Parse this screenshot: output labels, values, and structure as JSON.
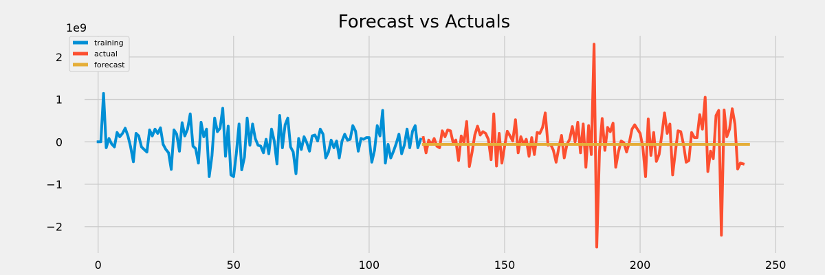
{
  "chart_data": {
    "type": "line",
    "title": "Forecast vs Actuals",
    "offset_label": "1e9",
    "xlabel": "",
    "ylabel": "",
    "xlim": [
      -5,
      253
    ],
    "ylim": [
      -2.62,
      2.5
    ],
    "xticks": [
      0,
      50,
      100,
      150,
      200,
      250
    ],
    "yticks": [
      -2,
      -1,
      0,
      1,
      2
    ],
    "xtick_labels": [
      "0",
      "50",
      "100",
      "150",
      "200",
      "250"
    ],
    "ytick_labels": [
      "−2",
      "−1",
      "0",
      "1",
      "2"
    ],
    "grid": true,
    "legend_position": "top-left",
    "series": [
      {
        "name": "training",
        "color": "#008fd5",
        "x_start": 0,
        "values": [
          0.0,
          0.0,
          1.14,
          -0.14,
          0.08,
          -0.05,
          -0.12,
          0.22,
          0.12,
          0.2,
          0.32,
          0.14,
          -0.12,
          -0.47,
          0.2,
          0.14,
          -0.12,
          -0.18,
          -0.24,
          0.28,
          0.14,
          0.3,
          0.2,
          0.33,
          -0.06,
          -0.18,
          -0.26,
          -0.65,
          0.28,
          0.18,
          -0.22,
          0.45,
          0.14,
          0.3,
          0.66,
          -0.1,
          -0.16,
          -0.5,
          0.46,
          0.12,
          0.3,
          -0.82,
          -0.33,
          0.56,
          0.24,
          0.32,
          0.79,
          -0.34,
          0.37,
          -0.78,
          -0.82,
          -0.28,
          0.42,
          -0.66,
          -0.36,
          0.56,
          -0.08,
          0.42,
          0.08,
          -0.08,
          -0.1,
          -0.26,
          0.06,
          -0.28,
          0.3,
          0.02,
          -0.52,
          0.62,
          -0.14,
          0.4,
          0.56,
          -0.12,
          -0.24,
          -0.75,
          0.08,
          -0.18,
          0.12,
          -0.02,
          -0.22,
          0.14,
          0.16,
          0.02,
          0.3,
          0.18,
          -0.38,
          -0.24,
          0.04,
          -0.14,
          0.02,
          -0.38,
          0.02,
          0.18,
          0.04,
          0.06,
          0.38,
          0.25,
          -0.22,
          0.08,
          0.06,
          0.1,
          0.1,
          -0.48,
          -0.2,
          0.38,
          0.14,
          0.74,
          -0.5,
          -0.06,
          -0.38,
          -0.22,
          -0.04,
          0.18,
          -0.28,
          -0.08,
          0.3,
          -0.14,
          0.25,
          0.38,
          -0.14,
          0.06
        ]
      },
      {
        "name": "actual",
        "color": "#fc4f30",
        "x_start": 120,
        "values": [
          0.1,
          -0.26,
          0.04,
          -0.06,
          0.08,
          -0.1,
          -0.14,
          0.26,
          0.12,
          0.28,
          0.26,
          -0.02,
          0.04,
          -0.44,
          0.14,
          -0.02,
          0.48,
          -0.58,
          -0.24,
          0.16,
          0.37,
          0.16,
          0.24,
          0.2,
          0.06,
          -0.42,
          0.66,
          -0.57,
          0.2,
          -0.5,
          -0.1,
          0.25,
          0.14,
          0.02,
          0.52,
          -0.26,
          0.12,
          -0.06,
          0.06,
          -0.34,
          0.1,
          -0.3,
          0.22,
          0.2,
          0.34,
          0.68,
          -0.08,
          -0.06,
          -0.2,
          -0.48,
          -0.14,
          0.15,
          -0.38,
          -0.06,
          0.06,
          0.36,
          0.0,
          0.46,
          -0.26,
          0.42,
          -0.6,
          0.38,
          -0.3,
          2.3,
          -2.48,
          -0.22,
          0.55,
          -0.2,
          0.34,
          0.24,
          0.44,
          -0.6,
          -0.24,
          0.02,
          -0.02,
          -0.24,
          -0.02,
          0.3,
          0.4,
          0.3,
          0.2,
          -0.12,
          -0.82,
          0.54,
          -0.32,
          0.22,
          -0.46,
          -0.3,
          0.16,
          0.68,
          0.2,
          0.42,
          -0.78,
          -0.24,
          0.26,
          0.24,
          -0.06,
          -0.48,
          -0.44,
          0.22,
          0.1,
          0.1,
          0.64,
          0.3,
          1.05,
          -0.7,
          -0.22,
          -0.4,
          0.62,
          0.74,
          -2.2,
          0.75,
          0.12,
          0.3,
          0.78,
          0.42,
          -0.64,
          -0.5,
          -0.52
        ]
      },
      {
        "name": "forecast",
        "color": "#e5ae38",
        "x_start": 120,
        "values": [
          -0.06,
          -0.06,
          -0.06,
          -0.06,
          -0.06,
          -0.06,
          -0.06,
          -0.06,
          -0.06,
          -0.06,
          -0.06,
          -0.06,
          -0.06,
          -0.06,
          -0.06,
          -0.06,
          -0.06,
          -0.06,
          -0.06,
          -0.06,
          -0.06,
          -0.06,
          -0.06,
          -0.06,
          -0.06,
          -0.06,
          -0.06,
          -0.06,
          -0.06,
          -0.06,
          -0.06,
          -0.06,
          -0.06,
          -0.06,
          -0.06,
          -0.06,
          -0.06,
          -0.06,
          -0.06,
          -0.06,
          -0.06,
          -0.06,
          -0.06,
          -0.06,
          -0.06,
          -0.06,
          -0.06,
          -0.06,
          -0.06,
          -0.06,
          -0.06,
          -0.06,
          -0.06,
          -0.06,
          -0.06,
          -0.06,
          -0.06,
          -0.06,
          -0.06,
          -0.06,
          -0.06,
          -0.06,
          -0.06,
          -0.06,
          -0.06,
          -0.06,
          -0.06,
          -0.06,
          -0.06,
          -0.06,
          -0.06,
          -0.06,
          -0.06,
          -0.06,
          -0.06,
          -0.06,
          -0.06,
          -0.06,
          -0.06,
          -0.06,
          -0.06,
          -0.06,
          -0.06,
          -0.06,
          -0.06,
          -0.06,
          -0.06,
          -0.06,
          -0.06,
          -0.06,
          -0.06,
          -0.06,
          -0.06,
          -0.06,
          -0.06,
          -0.06,
          -0.06,
          -0.06,
          -0.06,
          -0.06,
          -0.06,
          -0.06,
          -0.06,
          -0.06,
          -0.06,
          -0.06,
          -0.06,
          -0.06,
          -0.06,
          -0.06,
          -0.06,
          -0.06,
          -0.06,
          -0.06,
          -0.06,
          -0.06,
          -0.06,
          -0.06,
          -0.06,
          -0.06,
          -0.06
        ]
      }
    ]
  }
}
